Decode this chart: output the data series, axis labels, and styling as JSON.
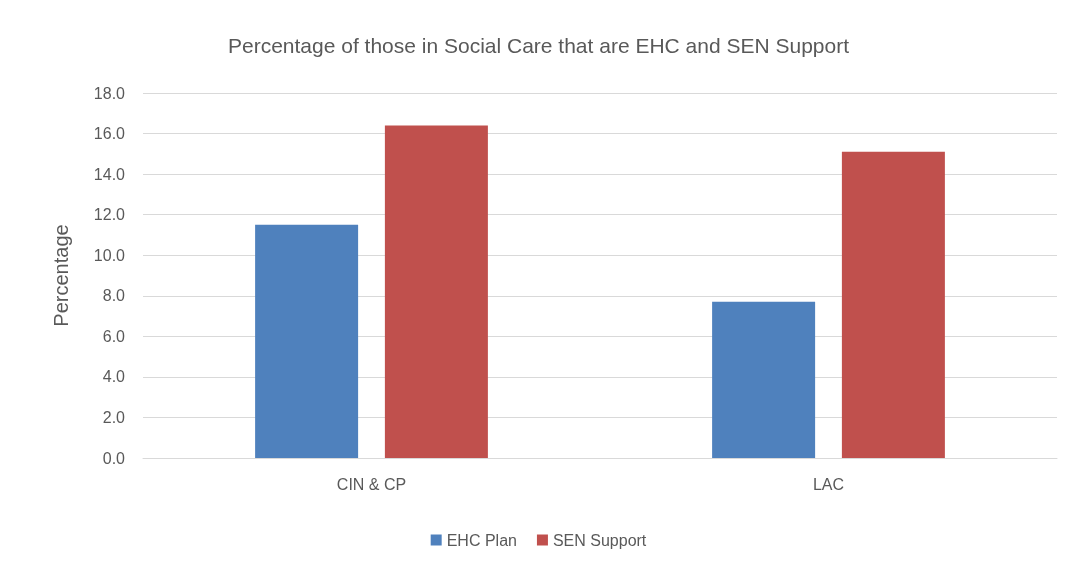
{
  "chart_data": {
    "type": "bar",
    "title": "Percentage of those in Social Care that are EHC and SEN Support",
    "ylabel": "Percentage",
    "categories": [
      "CIN & CP",
      "LAC"
    ],
    "series": [
      {
        "name": "EHC Plan",
        "color": "#4f81bd",
        "values": [
          11.5,
          7.7
        ]
      },
      {
        "name": "SEN Support",
        "color": "#c0504d",
        "values": [
          16.4,
          15.1
        ]
      }
    ],
    "ylim": [
      0,
      18
    ],
    "yticks": [
      {
        "value": 0,
        "label": "0.0"
      },
      {
        "value": 2,
        "label": "2.0"
      },
      {
        "value": 4,
        "label": "4.0"
      },
      {
        "value": 6,
        "label": "6.0"
      },
      {
        "value": 8,
        "label": "8.0"
      },
      {
        "value": 10,
        "label": "10.0"
      },
      {
        "value": 12,
        "label": "12.0"
      },
      {
        "value": 14,
        "label": "14.0"
      },
      {
        "value": 16,
        "label": "16.0"
      },
      {
        "value": 18,
        "label": "18.0"
      }
    ],
    "grid": true,
    "legend": "bottom"
  }
}
